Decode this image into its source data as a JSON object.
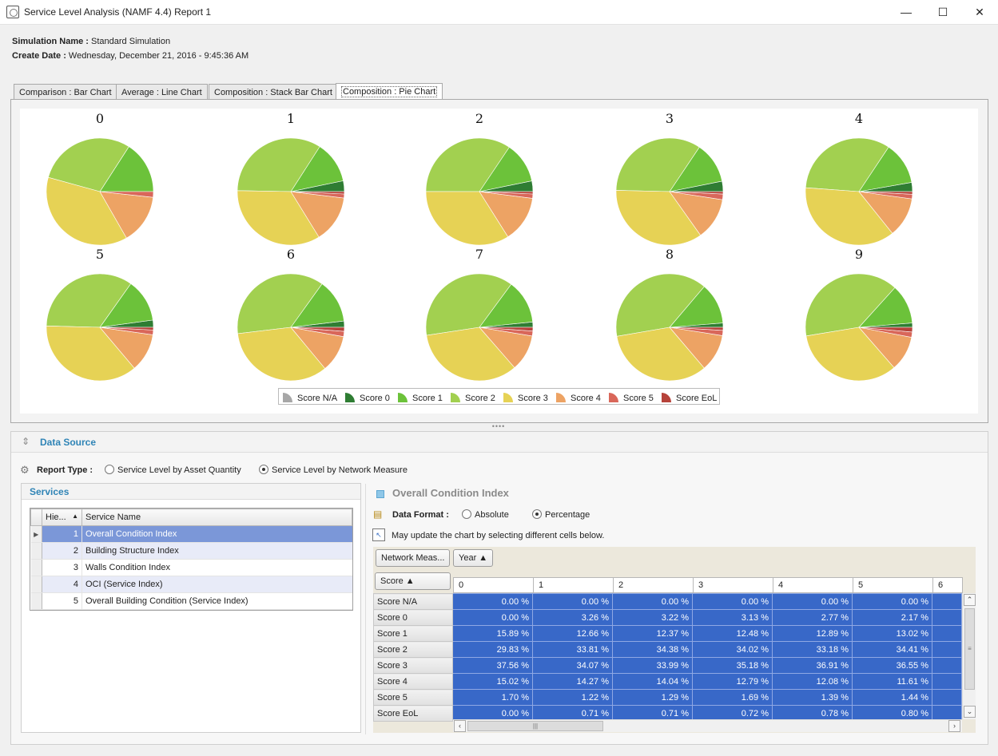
{
  "window": {
    "title": "Service Level Analysis (NAMF 4.4) Report 1",
    "controls": {
      "minimize": "—",
      "maximize": "☐",
      "close": "✕"
    }
  },
  "header": {
    "sim_label": "Simulation Name :",
    "sim_value": "Standard Simulation",
    "date_label": "Create Date :",
    "date_value": "Wednesday, December 21, 2016 - 9:45:36 AM"
  },
  "tabs": [
    {
      "label": "Comparison : Bar Chart"
    },
    {
      "label": "Average : Line Chart"
    },
    {
      "label": "Composition : Stack Bar Chart"
    },
    {
      "label": "Composition : Pie Chart",
      "active": true
    }
  ],
  "chart_data": {
    "type": "pie",
    "categories": [
      "Score N/A",
      "Score 0",
      "Score 1",
      "Score 2",
      "Score 3",
      "Score 4",
      "Score 5",
      "Score EoL"
    ],
    "colors": [
      "#a7a7a7",
      "#2f7d33",
      "#6cc23a",
      "#a2d050",
      "#e6d255",
      "#eda364",
      "#d9675a",
      "#b6423a"
    ],
    "pies": [
      {
        "title": "0",
        "values": [
          0.0,
          0.0,
          15.89,
          29.83,
          37.56,
          15.02,
          1.7,
          0.0
        ]
      },
      {
        "title": "1",
        "values": [
          0.0,
          3.26,
          12.66,
          33.81,
          34.07,
          14.27,
          1.22,
          0.71
        ]
      },
      {
        "title": "2",
        "values": [
          0.0,
          3.22,
          12.37,
          34.38,
          33.99,
          14.04,
          1.29,
          0.71
        ]
      },
      {
        "title": "3",
        "values": [
          0.0,
          3.13,
          12.48,
          34.02,
          35.18,
          12.79,
          1.69,
          0.72
        ]
      },
      {
        "title": "4",
        "values": [
          0.0,
          2.77,
          12.89,
          33.18,
          36.91,
          12.08,
          1.39,
          0.78
        ]
      },
      {
        "title": "5",
        "values": [
          0.0,
          2.17,
          13.02,
          34.41,
          36.55,
          11.61,
          1.44,
          0.8
        ]
      },
      {
        "title": "6",
        "values": [
          0.0,
          1.9,
          13.2,
          36.8,
          34.1,
          11.2,
          1.6,
          1.2
        ]
      },
      {
        "title": "7",
        "values": [
          0.0,
          1.6,
          13.3,
          37.5,
          34.0,
          11.0,
          1.5,
          1.1
        ]
      },
      {
        "title": "8",
        "values": [
          0.0,
          1.3,
          12.5,
          38.9,
          33.5,
          11.3,
          1.6,
          0.9
        ]
      },
      {
        "title": "9",
        "values": [
          0.0,
          1.3,
          12.0,
          39.3,
          33.8,
          10.6,
          1.6,
          1.4
        ]
      }
    ]
  },
  "data_source": {
    "title": "Data Source",
    "report_type_label": "Report Type :",
    "options": [
      "Service Level by Asset Quantity",
      "Service Level by Network Measure"
    ],
    "selected": 1
  },
  "services": {
    "title": "Services",
    "columns": [
      "Hie...",
      "Service Name"
    ],
    "rows": [
      {
        "id": "1",
        "name": "Overall Condition Index"
      },
      {
        "id": "2",
        "name": "Building Structure Index"
      },
      {
        "id": "3",
        "name": "Walls Condition Index"
      },
      {
        "id": "4",
        "name": "OCI (Service Index)"
      },
      {
        "id": "5",
        "name": "Overall Building Condition (Service Index)"
      }
    ]
  },
  "pivot": {
    "title": "Overall Condition Index",
    "format_label": "Data Format :",
    "formats": [
      "Absolute",
      "Percentage"
    ],
    "hint": "May update the chart by selecting different cells below.",
    "filter_buttons": [
      "Network Meas...",
      "Year ▲"
    ],
    "row_field": "Score ▲",
    "columns": [
      "0",
      "1",
      "2",
      "3",
      "4",
      "5",
      "6"
    ],
    "rows": [
      {
        "label": "Score N/A",
        "values": [
          "0.00 %",
          "0.00 %",
          "0.00 %",
          "0.00 %",
          "0.00 %",
          "0.00 %"
        ]
      },
      {
        "label": "Score 0",
        "values": [
          "0.00 %",
          "3.26 %",
          "3.22 %",
          "3.13 %",
          "2.77 %",
          "2.17 %"
        ]
      },
      {
        "label": "Score 1",
        "values": [
          "15.89 %",
          "12.66 %",
          "12.37 %",
          "12.48 %",
          "12.89 %",
          "13.02 %"
        ]
      },
      {
        "label": "Score 2",
        "values": [
          "29.83 %",
          "33.81 %",
          "34.38 %",
          "34.02 %",
          "33.18 %",
          "34.41 %"
        ]
      },
      {
        "label": "Score 3",
        "values": [
          "37.56 %",
          "34.07 %",
          "33.99 %",
          "35.18 %",
          "36.91 %",
          "36.55 %"
        ]
      },
      {
        "label": "Score 4",
        "values": [
          "15.02 %",
          "14.27 %",
          "14.04 %",
          "12.79 %",
          "12.08 %",
          "11.61 %"
        ]
      },
      {
        "label": "Score 5",
        "values": [
          "1.70 %",
          "1.22 %",
          "1.29 %",
          "1.69 %",
          "1.39 %",
          "1.44 %"
        ]
      },
      {
        "label": "Score EoL",
        "values": [
          "0.00 %",
          "0.71 %",
          "0.71 %",
          "0.72 %",
          "0.78 %",
          "0.80 %"
        ]
      }
    ]
  }
}
